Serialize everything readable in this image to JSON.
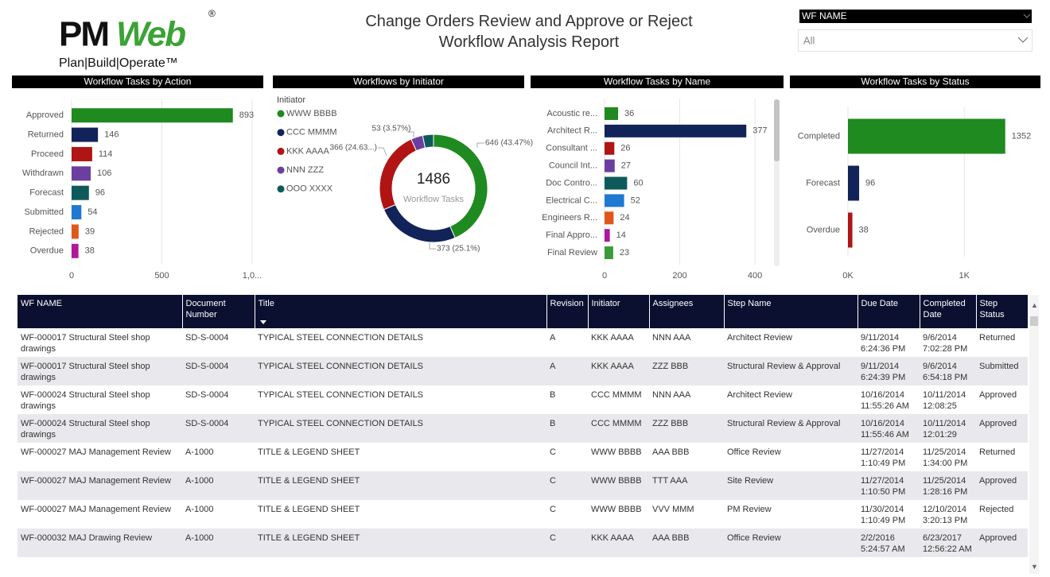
{
  "logo": {
    "part1": "PM",
    "part2": "Web",
    "mark": "®",
    "tagline": "Plan|Build|Operate™"
  },
  "header": {
    "title_lines": [
      "Change Orders Review and Approve or Reject",
      "Workflow Analysis Report"
    ]
  },
  "slicer": {
    "label": "WF NAME",
    "value": "All"
  },
  "chart_data": [
    {
      "type": "bar",
      "title": "Workflow Tasks by Action",
      "categories": [
        "Approved",
        "Returned",
        "Proceed",
        "Withdrawn",
        "Forecast",
        "Submitted",
        "Rejected",
        "Overdue"
      ],
      "values": [
        893,
        146,
        114,
        106,
        96,
        54,
        39,
        38
      ],
      "colors": [
        "#1f8a1f",
        "#12235a",
        "#b01414",
        "#6b3fa0",
        "#0e5a5a",
        "#1f78d1",
        "#e0571b",
        "#b0179b"
      ],
      "xlim": [
        0,
        1000
      ],
      "xticks": [
        0,
        500,
        {
          "value": 1000,
          "label": "1,0..."
        }
      ],
      "grid": true
    },
    {
      "type": "donut",
      "title": "Workflows by Initiator",
      "legend_title": "Initiator",
      "categories": [
        "WWW BBBB",
        "CCC MMMM",
        "KKK AAAA",
        "NNN ZZZ",
        "OOO XXXX"
      ],
      "values": [
        646,
        373,
        366,
        53,
        48
      ],
      "value_labels": [
        "646 (43.47%)",
        "373 (25.1%)",
        "366 (24.63...)",
        "53 (3.57%)",
        null
      ],
      "colors": [
        "#1f8a1f",
        "#12235a",
        "#b01414",
        "#6b3fa0",
        "#0e5a5a"
      ],
      "total": 1486,
      "total_label": "Workflow Tasks"
    },
    {
      "type": "bar",
      "title": "Workflow Tasks by Name",
      "categories": [
        "Acoustic re...",
        "Architect R...",
        "Consultant ...",
        "Council Int...",
        "Doc Contro...",
        "Electrical C...",
        "Engineers R...",
        "Final Appro...",
        "Final Review"
      ],
      "values": [
        36,
        377,
        26,
        27,
        60,
        52,
        24,
        14,
        23
      ],
      "colors": [
        "#1f8a1f",
        "#12235a",
        "#b01414",
        "#6b3fa0",
        "#0e5a5a",
        "#1f78d1",
        "#e0571b",
        "#b0179b",
        "#3a9a3a"
      ],
      "xlim": [
        0,
        440
      ],
      "xticks": [
        0,
        200,
        400
      ],
      "grid": true
    },
    {
      "type": "bar",
      "title": "Workflow Tasks by Status",
      "categories": [
        "Completed",
        "Forecast",
        "Overdue"
      ],
      "values": [
        1352,
        96,
        38
      ],
      "colors": [
        "#1f8a1f",
        "#12235a",
        "#b01414"
      ],
      "xlim": [
        0,
        1600
      ],
      "xticks": [
        {
          "value": 0,
          "label": "0K"
        },
        {
          "value": 1000,
          "label": "1K"
        }
      ],
      "grid": true
    }
  ],
  "table": {
    "columns": [
      "WF NAME",
      "Document Number",
      "Title",
      "Revision",
      "Initiator",
      "Assignees",
      "Step Name",
      "Due Date",
      "Completed Date",
      "Step Status"
    ],
    "rows": [
      [
        "WF-000017 Structural Steel shop drawings",
        "SD-S-0004",
        "TYPICAL STEEL CONNECTION DETAILS",
        "A",
        "KKK AAAA",
        "NNN AAA",
        "Architect Review",
        "9/11/2014 6:24:36 PM",
        "9/6/2014 7:02:28 PM",
        "Returned"
      ],
      [
        "WF-000017 Structural Steel shop drawings",
        "SD-S-0004",
        "TYPICAL STEEL CONNECTION DETAILS",
        "A",
        "KKK AAAA",
        "ZZZ BBB",
        "Structural Review & Approval",
        "9/11/2014 6:24:39 PM",
        "9/6/2014 6:54:18 PM",
        "Submitted"
      ],
      [
        "WF-000024 Structural Steel shop drawings",
        "SD-S-0004",
        "TYPICAL STEEL CONNECTION DETAILS",
        "B",
        "CCC MMMM",
        "NNN AAA",
        "Architect Review",
        "10/16/2014 11:55:26 AM",
        "10/11/2014 12:08:25",
        "Approved"
      ],
      [
        "WF-000024 Structural Steel shop drawings",
        "SD-S-0004",
        "TYPICAL STEEL CONNECTION DETAILS",
        "B",
        "CCC MMMM",
        "ZZZ BBB",
        "Structural Review & Approval",
        "10/16/2014 11:55:46 AM",
        "10/11/2014 12:01:29",
        "Approved"
      ],
      [
        "WF-000027 MAJ Management Review",
        "A-1000",
        "TITLE & LEGEND SHEET",
        "C",
        "WWW BBBB",
        "AAA BBB",
        "Office Review",
        "11/27/2014 1:10:49 PM",
        "11/25/2014 1:34:00 PM",
        "Returned"
      ],
      [
        "WF-000027 MAJ Management Review",
        "A-1000",
        "TITLE & LEGEND SHEET",
        "C",
        "WWW BBBB",
        "TTT AAA",
        "Site Review",
        "11/27/2014 1:10:50 PM",
        "11/25/2014 1:28:16 PM",
        "Approved"
      ],
      [
        "WF-000027 MAJ Management Review",
        "A-1000",
        "TITLE & LEGEND SHEET",
        "C",
        "WWW BBBB",
        "VVV MMM",
        "PM Review",
        "11/30/2014 1:10:49 PM",
        "12/10/2014 3:20:13 PM",
        "Rejected"
      ],
      [
        "WF-000032 MAJ Drawing Review",
        "A-1000",
        "TITLE & LEGEND SHEET",
        "C",
        "KKK AAAA",
        "AAA BBB",
        "Office Review",
        "2/2/2016 5:24:57 AM",
        "6/23/2017 12:56:22 AM",
        "Approved"
      ]
    ]
  }
}
